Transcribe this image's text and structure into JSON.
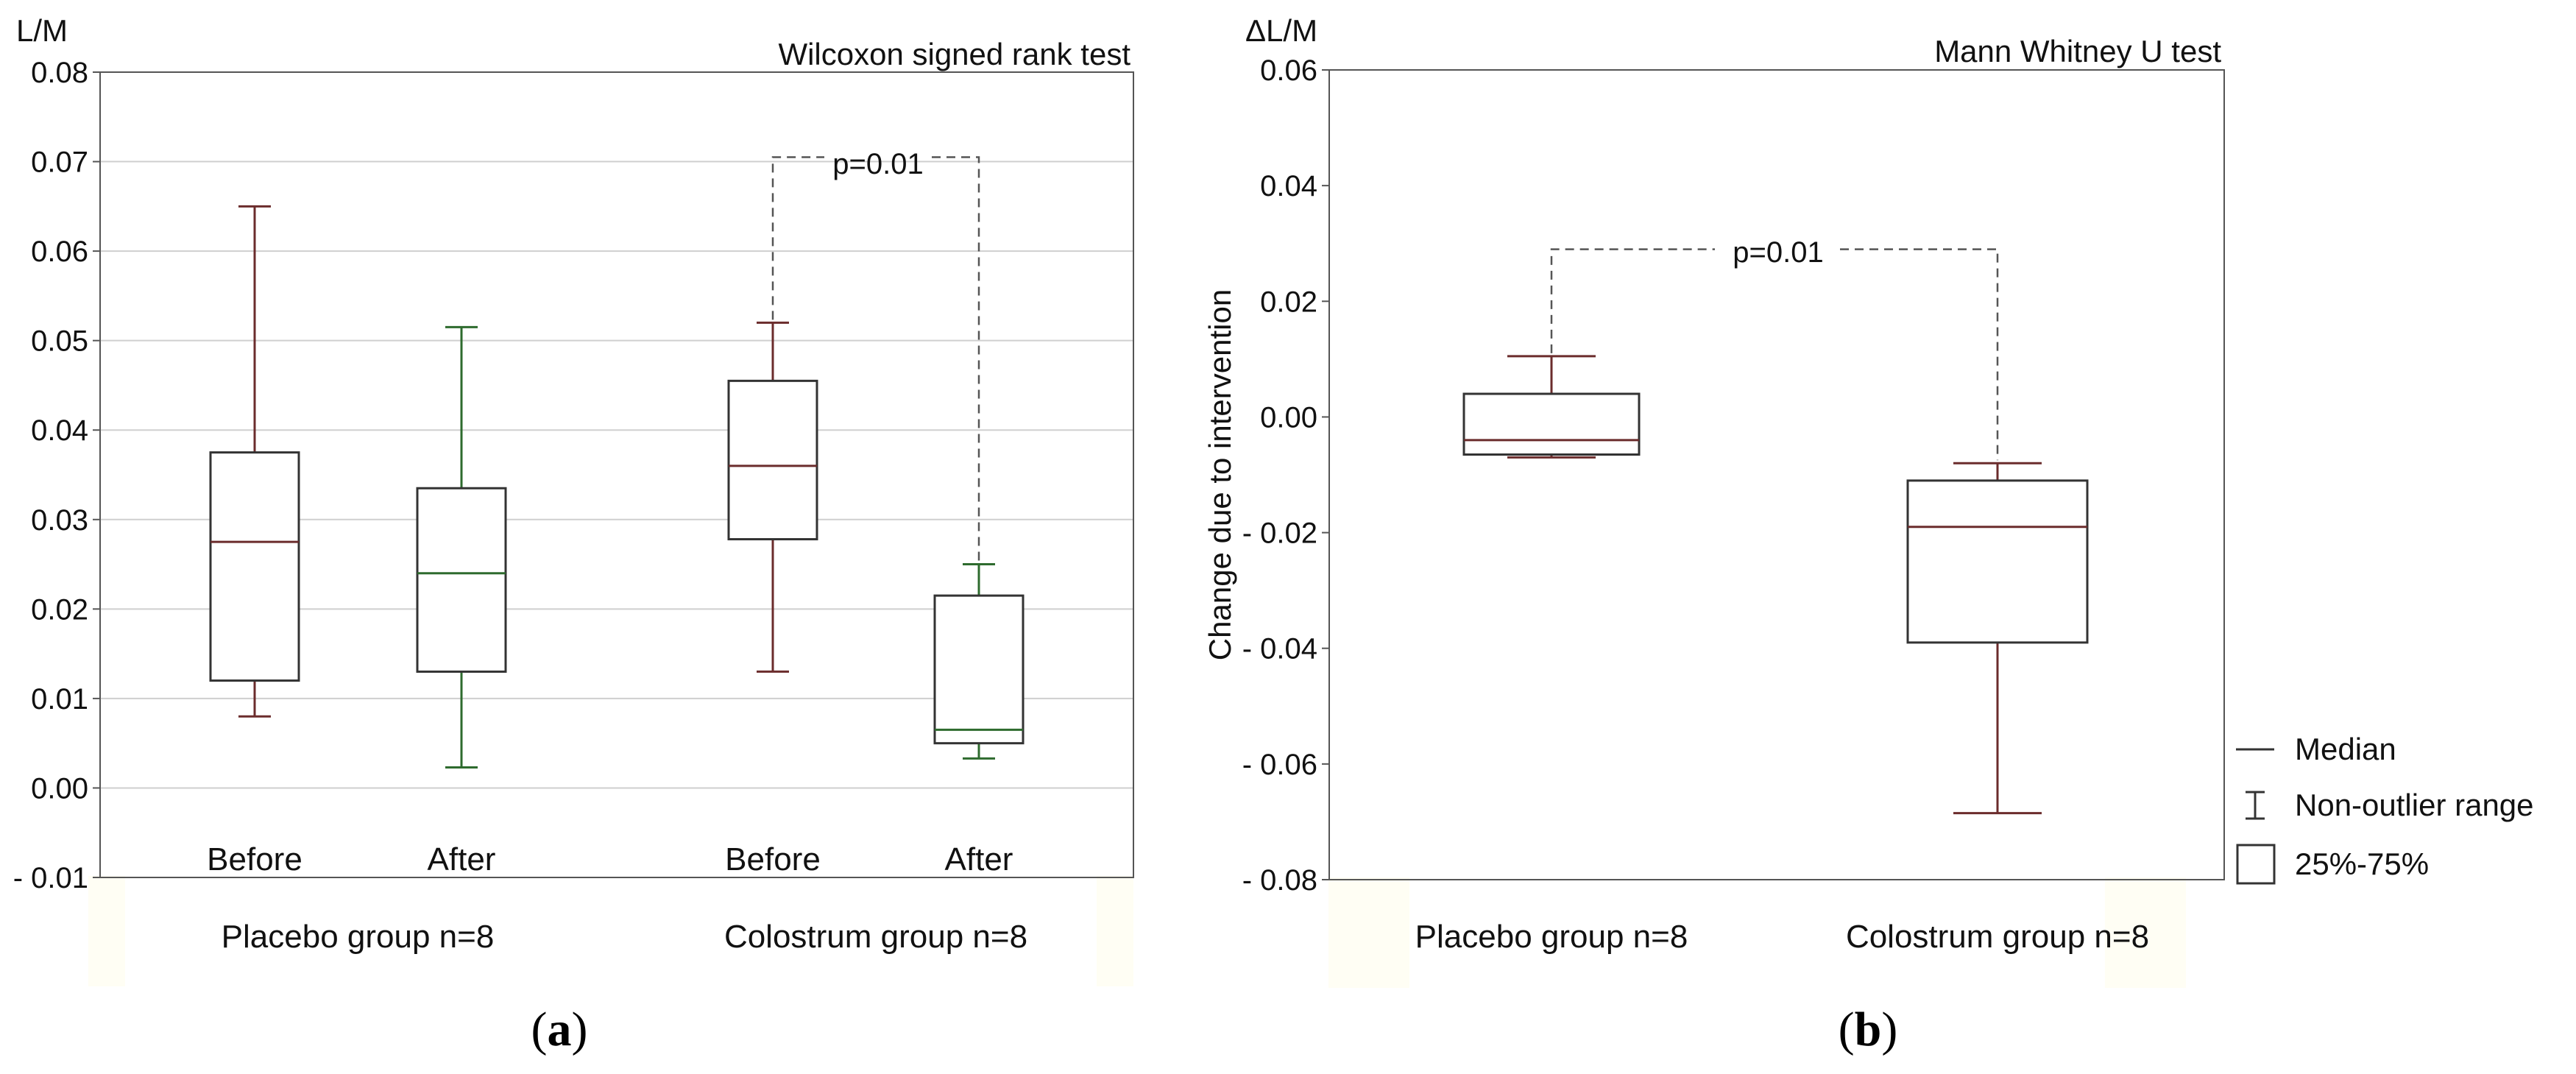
{
  "chart_data": [
    {
      "type": "box",
      "panel_label": "a",
      "title": "Wilcoxon signed rank test",
      "ylabel": "L/M",
      "ylim": [
        -0.01,
        0.08
      ],
      "yticks": [
        "0.08",
        "0.07",
        "0.06",
        "0.05",
        "0.04",
        "0.03",
        "0.02",
        "0.01",
        "0.00",
        "- 0.01"
      ],
      "grid": true,
      "groups": [
        "Placebo group n=8",
        "Colostrum group n=8"
      ],
      "boxes": [
        {
          "label": "Before",
          "group": "Placebo group n=8",
          "min": 0.008,
          "q1": 0.012,
          "median": 0.0275,
          "q3": 0.0375,
          "max": 0.065,
          "color": "#6b2c2c"
        },
        {
          "label": "After",
          "group": "Placebo group n=8",
          "min": 0.0023,
          "q1": 0.013,
          "median": 0.024,
          "q3": 0.0335,
          "max": 0.0515,
          "color": "#2e6b2e"
        },
        {
          "label": "Before",
          "group": "Colostrum group n=8",
          "min": 0.013,
          "q1": 0.0278,
          "median": 0.036,
          "q3": 0.0455,
          "max": 0.052,
          "color": "#6b2c2c"
        },
        {
          "label": "After",
          "group": "Colostrum group n=8",
          "min": 0.0033,
          "q1": 0.005,
          "median": 0.0065,
          "q3": 0.0215,
          "max": 0.025,
          "color": "#2e6b2e"
        }
      ],
      "annotation": {
        "text": "p=0.01",
        "y": 0.0705
      }
    },
    {
      "type": "box",
      "panel_label": "b",
      "title": "Mann Whitney U test",
      "ylabel": "ΔL/M",
      "ylabel_side": "Change due to intervention",
      "ylim": [
        -0.08,
        0.06
      ],
      "yticks": [
        "0.06",
        "0.04",
        "0.02",
        "0.00",
        "- 0.02",
        "- 0.04",
        "- 0.06",
        "- 0.08"
      ],
      "grid": false,
      "boxes": [
        {
          "label": "Placebo group n=8",
          "min": -0.007,
          "q1": -0.0065,
          "median": -0.004,
          "q3": 0.004,
          "max": 0.0105,
          "color": "#6b2c2c"
        },
        {
          "label": "Colostrum group n=8",
          "min": -0.0685,
          "q1": -0.039,
          "median": -0.019,
          "q3": -0.011,
          "max": -0.008,
          "color": "#6b2c2c"
        }
      ],
      "annotation": {
        "text": "p=0.01",
        "y": 0.029
      },
      "legend": {
        "position": "right",
        "items": [
          "Median",
          "Non-outlier range",
          "25%-75%"
        ]
      }
    }
  ]
}
